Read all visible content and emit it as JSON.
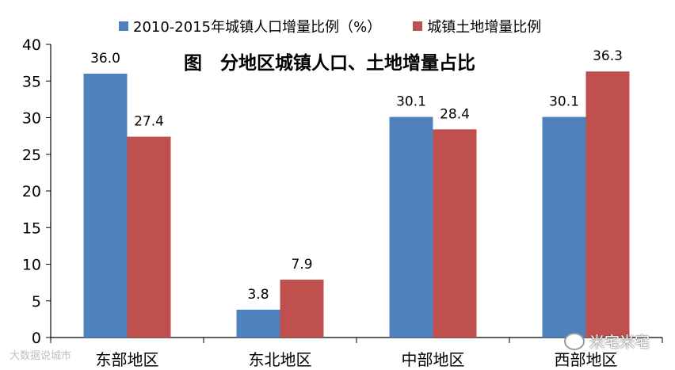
{
  "chart_data": {
    "type": "bar",
    "title": "图　分地区城镇人口、土地增量占比",
    "categories": [
      "东部地区",
      "东北地区",
      "中部地区",
      "西部地区"
    ],
    "series": [
      {
        "name": "2010-2015年城镇人口增量比例（%）",
        "color": "#4f81bd",
        "values": [
          36.0,
          3.8,
          30.1,
          30.1
        ],
        "labels": [
          "36.0",
          "3.8",
          "30.1",
          "30.1"
        ]
      },
      {
        "name": "城镇土地增量比例",
        "color": "#c0504d",
        "values": [
          27.4,
          7.9,
          28.4,
          36.3
        ],
        "labels": [
          "27.4",
          "7.9",
          "28.4",
          "36.3"
        ]
      }
    ],
    "ylim": [
      0,
      40
    ],
    "yticks": [
      "0",
      "5",
      "10",
      "15",
      "20",
      "25",
      "30",
      "35",
      "40"
    ],
    "grid": false,
    "legend_position": "top"
  },
  "watermark": {
    "left": "大数据说城市",
    "right": "米宅米宅"
  }
}
